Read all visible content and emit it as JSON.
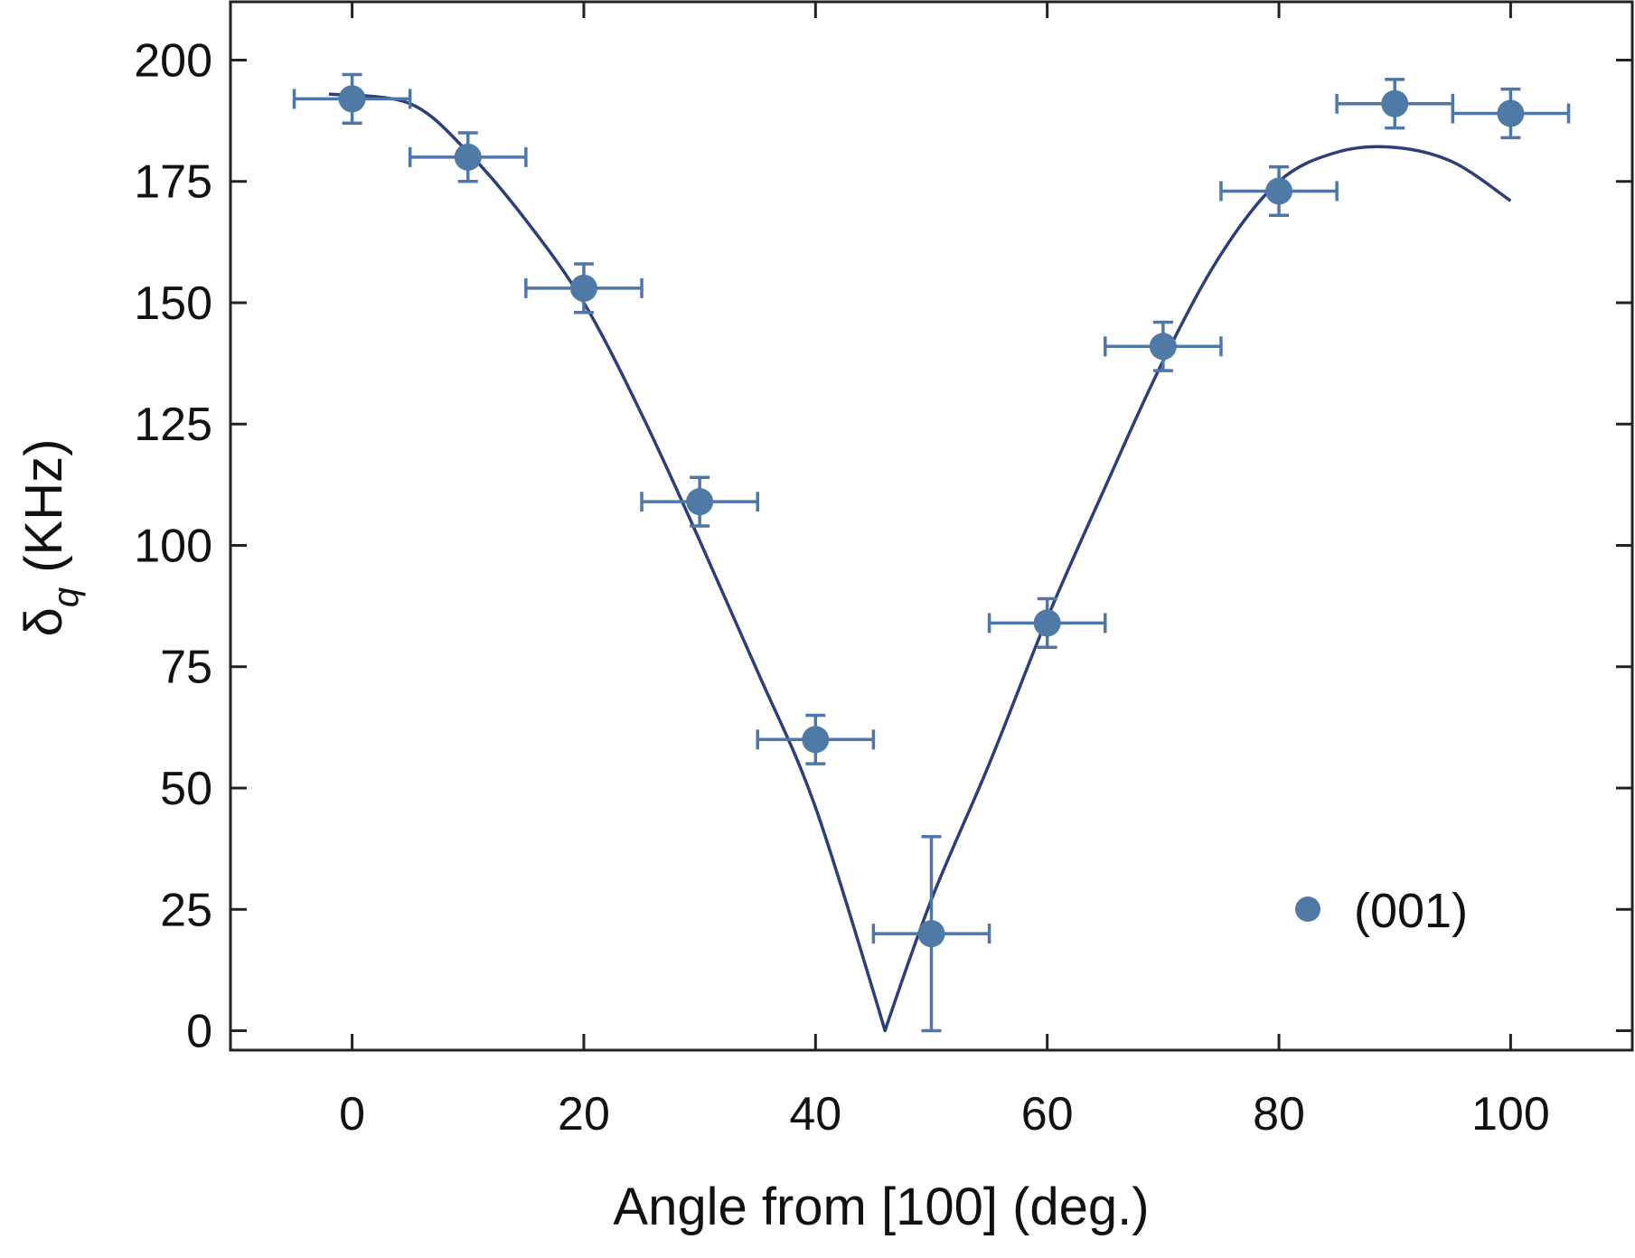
{
  "chart_data": {
    "type": "scatter",
    "title": "",
    "xlabel": "Angle from [100] (deg.)",
    "ylabel_symbol": "δ",
    "ylabel_subscript": "q",
    "ylabel_unit": "(KHz)",
    "xlim": [
      -10.5,
      110.5
    ],
    "ylim": [
      -4,
      212
    ],
    "x_ticks": [
      0,
      20,
      40,
      60,
      80,
      100
    ],
    "y_ticks": [
      0,
      25,
      50,
      75,
      100,
      125,
      150,
      175,
      200
    ],
    "x_tick_labels": [
      "0",
      "20",
      "40",
      "60",
      "80",
      "100"
    ],
    "y_tick_labels": [
      "0",
      "25",
      "50",
      "75",
      "100",
      "125",
      "150",
      "175",
      "200"
    ],
    "legend": {
      "label": "(001)",
      "position": "bottom-right"
    },
    "colors": {
      "points": "#4e7aa5",
      "errorbars": "#4f76ab",
      "fit": "#2c3f7a",
      "axes": "#222222"
    },
    "series": [
      {
        "name": "(001)",
        "x": [
          0,
          10,
          20,
          30,
          40,
          50,
          60,
          70,
          80,
          90,
          100
        ],
        "y": [
          192,
          180,
          153,
          109,
          60,
          20,
          84,
          141,
          173,
          191,
          189
        ],
        "x_err": [
          5,
          5,
          5,
          5,
          5,
          5,
          5,
          5,
          5,
          5,
          5
        ],
        "y_err_lower": [
          5,
          5,
          5,
          5,
          5,
          20,
          5,
          5,
          5,
          5,
          5
        ],
        "y_err_upper": [
          5,
          5,
          5,
          5,
          5,
          20,
          5,
          5,
          5,
          5,
          5
        ]
      }
    ],
    "fit": {
      "name": "fit",
      "x": [
        -2,
        5,
        10,
        15,
        20,
        25,
        30,
        35,
        40,
        46,
        50,
        55,
        60,
        65,
        70,
        75,
        80,
        85,
        90,
        95,
        100
      ],
      "y": [
        193,
        191,
        181,
        167,
        150,
        127,
        101,
        74,
        46,
        0,
        27,
        55,
        85,
        112,
        138,
        160,
        175,
        181,
        182,
        179,
        171
      ]
    }
  }
}
